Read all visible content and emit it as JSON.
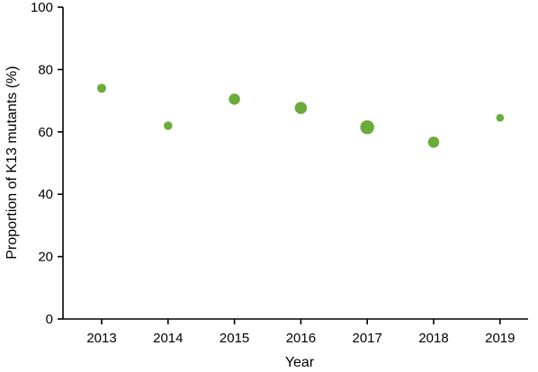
{
  "chart_data": {
    "type": "scatter",
    "title": "",
    "xlabel": "Year",
    "ylabel": "Proportion of K13 mutants (%)",
    "categories": [
      "2013",
      "2014",
      "2015",
      "2016",
      "2017",
      "2018",
      "2019"
    ],
    "values": [
      74,
      62,
      70.5,
      67.7,
      61.5,
      56.7,
      64.5
    ],
    "ylim": [
      0,
      100
    ],
    "yticks": [
      "0",
      "20",
      "40",
      "60",
      "80",
      "100"
    ],
    "grid": false,
    "legend": "none",
    "point_color": "#6aac3a",
    "note": "marker size varies by year (relative sample size)",
    "point_sizes": [
      1.0,
      0.95,
      1.25,
      1.35,
      1.55,
      1.25,
      0.85
    ]
  }
}
